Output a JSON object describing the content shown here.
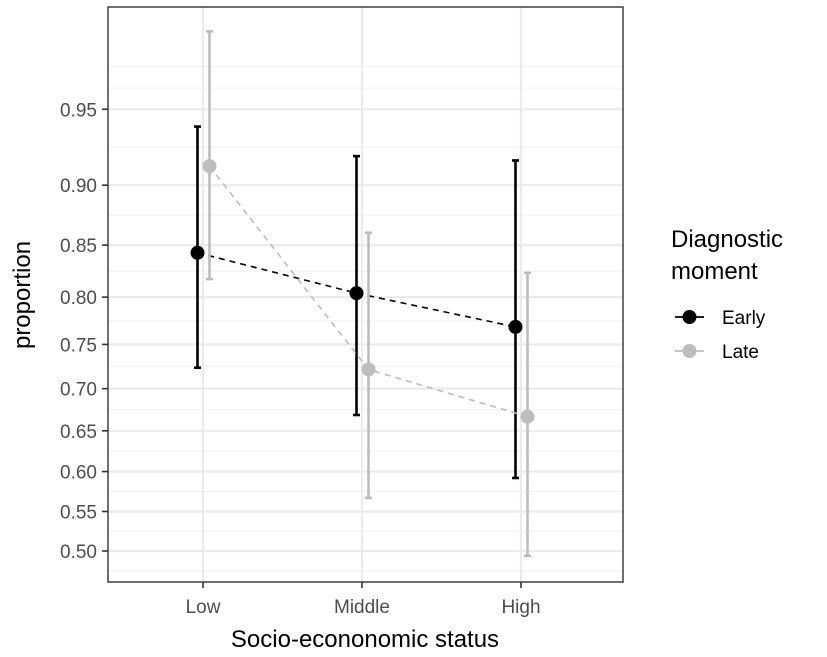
{
  "chart_data": {
    "type": "line",
    "subtype": "point-range with dodged error bars and dashed connecting lines",
    "title": "",
    "xlabel": "Socio-econonomic status",
    "ylabel": "proportion",
    "categories": [
      "Low",
      "Middle",
      "High"
    ],
    "y_scale": "arcsine-sqrt",
    "ylim": [
      0.465,
      0.995
    ],
    "y_ticks": [
      0.5,
      0.55,
      0.6,
      0.65,
      0.7,
      0.75,
      0.8,
      0.85,
      0.9,
      0.95
    ],
    "y_tick_labels": [
      "0.50",
      "0.55",
      "0.60",
      "0.65",
      "0.70",
      "0.75",
      "0.80",
      "0.85",
      "0.90",
      "0.95"
    ],
    "extra_minor_grid": [
      0.475,
      0.961,
      0.971
    ],
    "grid": true,
    "legend": {
      "title_line1": "Diagnostic",
      "title_line2": "moment",
      "position": "right"
    },
    "series": [
      {
        "name": "Early",
        "color": "#000000",
        "values": [
          0.843,
          0.804,
          0.769
        ],
        "lower": [
          0.724,
          0.669,
          0.592
        ],
        "upper": [
          0.94,
          0.921,
          0.918
        ]
      },
      {
        "name": "Late",
        "color": "#bdbdbd",
        "values": [
          0.914,
          0.722,
          0.667
        ],
        "lower": [
          0.818,
          0.567,
          0.494
        ],
        "upper": [
          0.984,
          0.861,
          0.824
        ]
      }
    ]
  },
  "colors": {
    "background": "#ffffff",
    "panel_border": "#333333",
    "grid_major": "#ebebeb",
    "grid_minor": "#f2f2f2",
    "tick_text": "#4d4d4d"
  }
}
